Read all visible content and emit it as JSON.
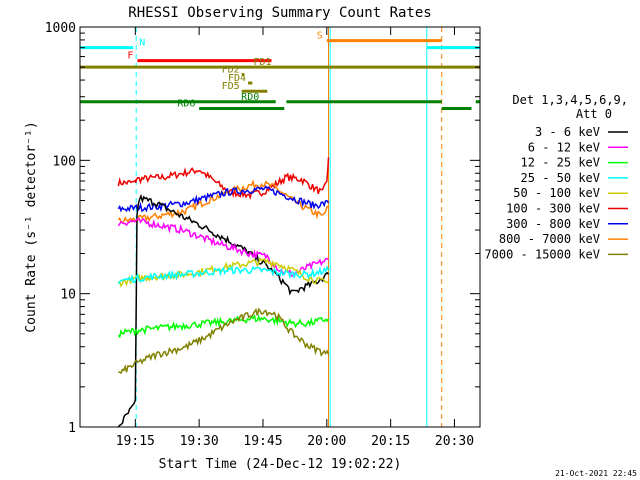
{
  "chart_data": {
    "type": "line",
    "title": "RHESSI Observing Summary Count Rates",
    "xlabel": "Start Time (24-Dec-12 19:02:22)",
    "ylabel": "Count Rate (s⁻¹ detector⁻¹)",
    "x_unit": "minutes after 19:02:22",
    "xlim": [
      0,
      94
    ],
    "ylim": [
      1,
      1000
    ],
    "yscale": "log",
    "x_ticks": [
      {
        "pos": 13,
        "label": "19:15"
      },
      {
        "pos": 28,
        "label": "19:30"
      },
      {
        "pos": 43,
        "label": "19:45"
      },
      {
        "pos": 58,
        "label": "20:00"
      },
      {
        "pos": 73,
        "label": "20:15"
      },
      {
        "pos": 88,
        "label": "20:30"
      }
    ],
    "y_ticks": [
      {
        "pos": 1,
        "label": "1"
      },
      {
        "pos": 10,
        "label": "10"
      },
      {
        "pos": 100,
        "label": "100"
      },
      {
        "pos": 1000,
        "label": "1000"
      }
    ],
    "legend": {
      "placement": "right",
      "header": [
        "Det 1,3,4,5,6,9,",
        "Att 0"
      ],
      "entries": [
        {
          "label": "3 - 6 keV",
          "color": "#000000"
        },
        {
          "label": "6 - 12 keV",
          "color": "#ff00ff"
        },
        {
          "label": "12 - 25 keV",
          "color": "#00ff00"
        },
        {
          "label": "25 - 50 keV",
          "color": "#00ffff"
        },
        {
          "label": "50 - 100 keV",
          "color": "#cccc00"
        },
        {
          "label": "100 - 300 keV",
          "color": "#ee0000"
        },
        {
          "label": "300 - 800 keV",
          "color": "#0000ee"
        },
        {
          "label": "800 - 7000 keV",
          "color": "#ff8000"
        },
        {
          "label": "7000 - 15000 keV",
          "color": "#808000"
        }
      ]
    },
    "flag_bars": [
      {
        "label": "N",
        "color": "#00ffff",
        "y": 700,
        "segments": [
          [
            0,
            12.5
          ],
          [
            81.5,
            94
          ]
        ]
      },
      {
        "label": "S",
        "color": "#ff8000",
        "y": 790,
        "segments": [
          [
            58,
            85
          ]
        ]
      },
      {
        "label": "F",
        "color": "#ff0000",
        "y": 560,
        "segments": [
          [
            13.5,
            45
          ]
        ]
      },
      {
        "label": "FD1",
        "color": "#808000",
        "y": 500,
        "segments": [
          [
            0,
            94
          ]
        ]
      },
      {
        "label": "FD2",
        "color": "#808000",
        "y": 440,
        "segments": [
          [
            38,
            38.6
          ]
        ]
      },
      {
        "label": "FD4",
        "color": "#808000",
        "y": 380,
        "segments": [
          [
            39.5,
            40.5
          ]
        ]
      },
      {
        "label": "FD5",
        "color": "#808000",
        "y": 330,
        "segments": [
          [
            38,
            44
          ]
        ]
      },
      {
        "label": "RD0",
        "color": "#008000",
        "y": 275,
        "segments": [
          [
            0,
            46
          ],
          [
            48.5,
            85
          ],
          [
            93,
            94
          ]
        ]
      },
      {
        "label": "RD6",
        "color": "#008000",
        "y": 245,
        "segments": [
          [
            28,
            48
          ],
          [
            85,
            92
          ]
        ]
      }
    ],
    "vertical_lines": [
      {
        "x": 0,
        "color": "#00ffff",
        "style": "solid"
      },
      {
        "x": 13.2,
        "color": "#00ffff",
        "style": "dashed"
      },
      {
        "x": 58.8,
        "color": "#00ffff",
        "style": "solid"
      },
      {
        "x": 58.4,
        "color": "#ff8000",
        "style": "solid"
      },
      {
        "x": 81.5,
        "color": "#00ffff",
        "style": "solid"
      },
      {
        "x": 85,
        "color": "#ff8000",
        "style": "dashed"
      },
      {
        "x": 94,
        "color": "#00ffff",
        "style": "dashed"
      }
    ],
    "series": [
      {
        "name": "100 - 300 keV",
        "color": "#ee0000",
        "x": [
          9,
          13,
          13.2,
          20,
          28,
          35,
          40,
          43,
          46,
          48.5,
          52,
          55,
          57,
          58,
          58.4
        ],
        "y": [
          68,
          68,
          72,
          75,
          85,
          58,
          55,
          58,
          66,
          75,
          72,
          62,
          57,
          70,
          105
        ]
      },
      {
        "name": "800 - 7000 keV",
        "color": "#ff8000",
        "x": [
          9,
          13.2,
          18,
          25,
          30,
          35,
          40,
          43,
          46,
          50,
          54,
          57,
          58.4
        ],
        "y": [
          35,
          36,
          38,
          42,
          50,
          58,
          65,
          67,
          62,
          50,
          42,
          38,
          45
        ]
      },
      {
        "name": "300 - 800 keV",
        "color": "#0000ee",
        "x": [
          9,
          13.2,
          18,
          25,
          30,
          35,
          40,
          43,
          46,
          50,
          55,
          58.4
        ],
        "y": [
          43,
          44,
          45,
          48,
          53,
          58,
          60,
          61,
          58,
          52,
          46,
          48
        ]
      },
      {
        "name": "3 - 6 keV",
        "color": "#000000",
        "x": [
          9,
          13,
          13.4,
          14,
          16,
          18,
          20,
          24,
          28,
          32,
          36,
          40,
          44,
          46,
          48,
          50,
          52,
          55,
          58.4
        ],
        "y": [
          1,
          1.5,
          40,
          52,
          50,
          48,
          44,
          38,
          33,
          28,
          24,
          20,
          16,
          14,
          12,
          10,
          11,
          12,
          14
        ]
      },
      {
        "name": "6 - 12 keV",
        "color": "#ff00ff",
        "x": [
          9,
          13.2,
          16,
          20,
          24,
          28,
          32,
          36,
          40,
          44,
          47,
          50,
          54,
          58.4
        ],
        "y": [
          34,
          35,
          34,
          32,
          30,
          27,
          24,
          22,
          20,
          19,
          15,
          14,
          16,
          18
        ]
      },
      {
        "name": "50 - 100 keV",
        "color": "#cccc00",
        "x": [
          9,
          13.2,
          18,
          25,
          30,
          35,
          40,
          43,
          46,
          50,
          54,
          58.4
        ],
        "y": [
          12,
          13,
          13.5,
          14,
          15,
          16,
          17,
          17.5,
          17,
          15,
          13,
          12
        ]
      },
      {
        "name": "25 - 50 keV",
        "color": "#00ffff",
        "x": [
          9,
          13.2,
          18,
          25,
          30,
          35,
          40,
          43,
          46,
          50,
          54,
          58.4
        ],
        "y": [
          12.5,
          13,
          13.5,
          14,
          14.5,
          15,
          15,
          15,
          14.5,
          14,
          14,
          15
        ]
      },
      {
        "name": "12 - 25 keV",
        "color": "#00ff00",
        "x": [
          9,
          13.2,
          18,
          25,
          30,
          35,
          40,
          43,
          46,
          50,
          54,
          58.4
        ],
        "y": [
          5,
          5.3,
          5.5,
          5.8,
          6,
          6.2,
          6.5,
          6.5,
          6.3,
          6,
          6,
          6.5
        ]
      },
      {
        "name": "7000 - 15000 keV",
        "color": "#808000",
        "x": [
          9,
          13.2,
          18,
          25,
          30,
          35,
          40,
          43,
          46,
          50,
          54,
          58.4
        ],
        "y": [
          2.5,
          3,
          3.5,
          4,
          4.8,
          6,
          7,
          7.5,
          7,
          5,
          4,
          3.5
        ]
      }
    ]
  },
  "footer": {
    "timestamp": "21-Oct-2021 22:45"
  }
}
